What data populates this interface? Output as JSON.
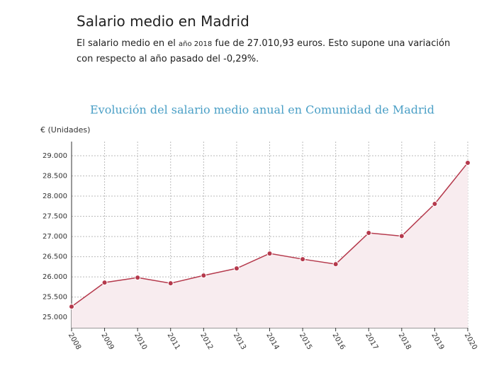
{
  "header": {
    "title": "Salario medio en Madrid",
    "text": [
      "El salario medio en el ",
      "año 2018",
      " fue de 27.010,93 euros. Esto supone una variación con respecto al año pasado del -0,29%."
    ]
  },
  "chart_data": {
    "type": "line",
    "title": "Evolución del salario medio anual en Comunidad de Madrid",
    "y_label": "€ (Unidades)",
    "x": [
      2008,
      2009,
      2010,
      2011,
      2012,
      2013,
      2014,
      2015,
      2016,
      2017,
      2018,
      2019,
      2020
    ],
    "values": [
      25263,
      25860,
      25982,
      25842,
      26035,
      26210,
      26579,
      26439,
      26316,
      27088,
      27010.93,
      27807,
      28825
    ],
    "color": "#b5394c",
    "area_color": "#f8ecef",
    "grid": true,
    "xlim": [
      2008,
      2020
    ],
    "xticks": [
      2008,
      2009,
      2010,
      2011,
      2012,
      2013,
      2014,
      2015,
      2016,
      2017,
      2018,
      2019,
      2020
    ],
    "ylim": [
      24740,
      29350
    ],
    "yticks": [
      {
        "value": 25000,
        "label": "25.000"
      },
      {
        "value": 25500,
        "label": "25.500"
      },
      {
        "value": 26000,
        "label": "26.000"
      },
      {
        "value": 26500,
        "label": "26.500"
      },
      {
        "value": 27000,
        "label": "27.000"
      },
      {
        "value": 27500,
        "label": "27.500"
      },
      {
        "value": 28000,
        "label": "28.000"
      },
      {
        "value": 28500,
        "label": "28.500"
      },
      {
        "value": 29000,
        "label": "29.000"
      }
    ]
  }
}
